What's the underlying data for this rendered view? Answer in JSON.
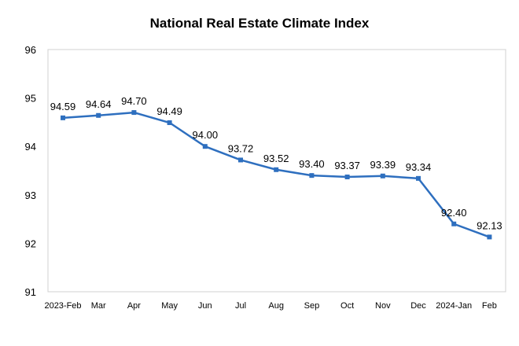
{
  "chart_data": {
    "type": "line",
    "title": "National Real Estate Climate Index",
    "xlabel": "",
    "ylabel": "",
    "categories": [
      "2023-Feb",
      "Mar",
      "Apr",
      "May",
      "Jun",
      "Jul",
      "Aug",
      "Sep",
      "Oct",
      "Nov",
      "Dec",
      "2024-Jan",
      "Feb"
    ],
    "series": [
      {
        "values": [
          94.59,
          94.64,
          94.7,
          94.49,
          94.0,
          93.72,
          93.52,
          93.4,
          93.37,
          93.39,
          93.34,
          92.4,
          92.13
        ],
        "data_labels": [
          "94.59",
          "94.64",
          "94.70",
          "94.49",
          "94.00",
          "93.72",
          "93.52",
          "93.40",
          "93.37",
          "93.39",
          "93.34",
          "92.40",
          "92.13"
        ],
        "color": "#2E6FBF",
        "marker": "square"
      }
    ],
    "ylim": [
      91,
      96
    ],
    "yticks": [
      91,
      92,
      93,
      94,
      95,
      96
    ],
    "grid": false,
    "legend": "none"
  }
}
